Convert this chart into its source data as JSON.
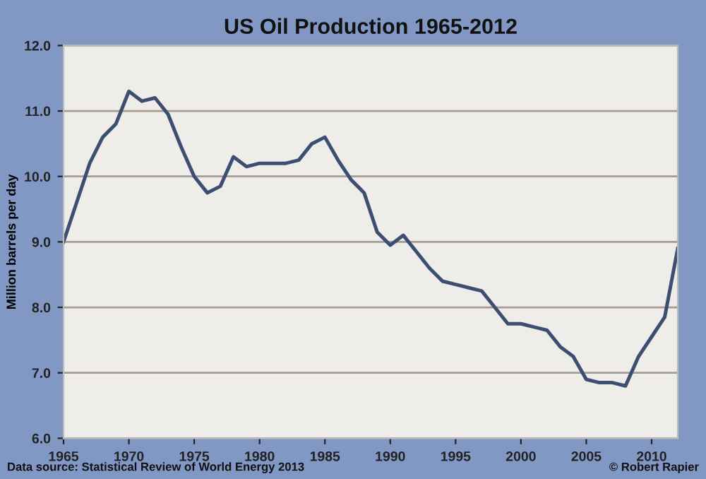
{
  "chart_data": {
    "type": "line",
    "title": "US Oil Production 1965-2012",
    "ylabel": "Million barrels per day",
    "x": [
      1965,
      1966,
      1967,
      1968,
      1969,
      1970,
      1971,
      1972,
      1973,
      1974,
      1975,
      1976,
      1977,
      1978,
      1979,
      1980,
      1981,
      1982,
      1983,
      1984,
      1985,
      1986,
      1987,
      1988,
      1989,
      1990,
      1991,
      1992,
      1993,
      1994,
      1995,
      1996,
      1997,
      1998,
      1999,
      2000,
      2001,
      2002,
      2003,
      2004,
      2005,
      2006,
      2007,
      2008,
      2009,
      2010,
      2011,
      2012
    ],
    "series": [
      {
        "color": "#3d4f70",
        "values": [
          9.0,
          9.6,
          10.2,
          10.6,
          10.8,
          11.3,
          11.15,
          11.2,
          10.95,
          10.45,
          10.0,
          9.75,
          9.85,
          10.3,
          10.15,
          10.2,
          10.2,
          10.2,
          10.25,
          10.5,
          10.6,
          10.25,
          9.95,
          9.75,
          9.15,
          8.95,
          9.1,
          8.85,
          8.6,
          8.4,
          8.35,
          8.3,
          8.25,
          8.0,
          7.75,
          7.75,
          7.7,
          7.65,
          7.4,
          7.25,
          6.9,
          6.85,
          6.85,
          6.8,
          7.25,
          7.55,
          7.85,
          8.9
        ]
      }
    ],
    "xlim": [
      1965,
      2012
    ],
    "xticks": [
      1965,
      1970,
      1975,
      1980,
      1985,
      1990,
      1995,
      2000,
      2005,
      2010
    ],
    "ylim": [
      6.0,
      12.0
    ],
    "yticks": [
      {
        "value": 6,
        "label": "6.0"
      },
      {
        "value": 7,
        "label": "7.0"
      },
      {
        "value": 8,
        "label": "8.0"
      },
      {
        "value": 9,
        "label": "9.0"
      },
      {
        "value": 10,
        "label": "10.0"
      },
      {
        "value": 11,
        "label": "11.0"
      },
      {
        "value": 12,
        "label": "12.0"
      }
    ],
    "grid": "y",
    "marker": "none",
    "line_style": "solid",
    "annotations": [
      "Data source: Statistical Review of World Energy 2013",
      "© Robert Rapier"
    ]
  }
}
